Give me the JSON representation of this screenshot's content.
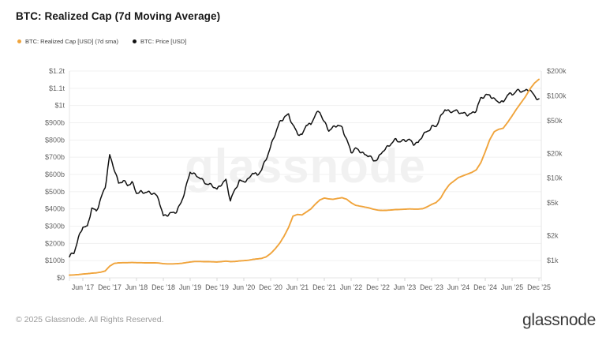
{
  "header": {
    "title": "BTC: Realized Cap (7d Moving Average)"
  },
  "legend": [
    {
      "label": "BTC: Realized Cap [USD] (7d sma)",
      "color": "#f0a43c"
    },
    {
      "label": "BTC: Price [USD]",
      "color": "#111111"
    }
  ],
  "watermark": "glassnode",
  "footer": {
    "copyright": "© 2025 Glassnode. All Rights Reserved.",
    "brand": "glassnode"
  },
  "chart_data": {
    "type": "line",
    "title": "BTC: Realized Cap (7d Moving Average)",
    "x_start": "2017-03",
    "x_end": "2025-12",
    "x_interval": "monthly",
    "x_tick_labels": [
      "Jun ’17",
      "Dec ’17",
      "Jun ’18",
      "Dec ’18",
      "Jun ’19",
      "Dec ’19",
      "Jun ’20",
      "Dec ’20",
      "Jun ’21",
      "Dec ’21",
      "Jun ’22",
      "Dec ’22",
      "Jun ’23",
      "Dec ’23",
      "Jun ’24",
      "Dec ’24",
      "Jun ’25",
      "Dec ’25"
    ],
    "x_tick_first_month_index": 3,
    "x_tick_step_months": 6,
    "left_axis": {
      "scale": "linear",
      "unit": "USD billions",
      "range": [
        0,
        1200
      ],
      "ticks": [
        {
          "label": "$0",
          "value": 0
        },
        {
          "label": "$100b",
          "value": 100
        },
        {
          "label": "$200b",
          "value": 200
        },
        {
          "label": "$300b",
          "value": 300
        },
        {
          "label": "$400b",
          "value": 400
        },
        {
          "label": "$500b",
          "value": 500
        },
        {
          "label": "$600b",
          "value": 600
        },
        {
          "label": "$700b",
          "value": 700
        },
        {
          "label": "$800b",
          "value": 800
        },
        {
          "label": "$900b",
          "value": 900
        },
        {
          "label": "$1t",
          "value": 1000
        },
        {
          "label": "$1.1t",
          "value": 1100
        },
        {
          "label": "$1.2t",
          "value": 1200
        }
      ]
    },
    "right_axis": {
      "scale": "log",
      "unit": "USD",
      "range": [
        1000,
        200000
      ],
      "ticks": [
        {
          "label": "$1k",
          "value": 1000
        },
        {
          "label": "$2k",
          "value": 2000
        },
        {
          "label": "$5k",
          "value": 5000
        },
        {
          "label": "$10k",
          "value": 10000
        },
        {
          "label": "$20k",
          "value": 20000
        },
        {
          "label": "$50k",
          "value": 50000
        },
        {
          "label": "$100k",
          "value": 100000
        },
        {
          "label": "$200k",
          "value": 200000
        }
      ]
    },
    "grid": "horizontal-only",
    "legend_position": "top-left",
    "series": [
      {
        "name": "BTC: Realized Cap [USD] (7d sma)",
        "axis": "left",
        "color": "#f0a43c",
        "unit": "USD billions",
        "values": [
          16,
          17,
          19,
          22,
          24,
          27,
          29,
          33,
          40,
          68,
          84,
          87,
          88,
          88,
          89,
          88,
          88,
          87,
          87,
          87,
          86,
          82,
          81,
          81,
          82,
          84,
          88,
          92,
          95,
          95,
          94,
          94,
          93,
          92,
          94,
          97,
          94,
          95,
          98,
          100,
          102,
          107,
          110,
          113,
          122,
          141,
          168,
          200,
          242,
          292,
          358,
          368,
          365,
          382,
          400,
          428,
          452,
          463,
          458,
          456,
          461,
          465,
          456,
          436,
          421,
          416,
          411,
          406,
          398,
          393,
          391,
          392,
          394,
          396,
          397,
          398,
          400,
          399,
          399,
          401,
          412,
          426,
          437,
          462,
          507,
          542,
          562,
          582,
          592,
          602,
          612,
          627,
          668,
          732,
          802,
          848,
          862,
          868,
          902,
          940,
          980,
          1016,
          1052,
          1096,
          1130,
          1152
        ]
      },
      {
        "name": "BTC: Price [USD]",
        "axis": "right",
        "color": "#111111",
        "unit": "USD",
        "values": [
          1100,
          1250,
          1900,
          2600,
          2500,
          4300,
          4000,
          5700,
          7800,
          18500,
          13000,
          8800,
          9500,
          8100,
          8700,
          6700,
          6900,
          6800,
          6500,
          6450,
          5600,
          3500,
          3600,
          3700,
          3950,
          5200,
          7600,
          11800,
          10800,
          10400,
          9300,
          8400,
          8000,
          7200,
          8700,
          9600,
          5300,
          7100,
          9200,
          9400,
          9600,
          11600,
          10600,
          13000,
          17500,
          24000,
          34000,
          47000,
          56000,
          60000,
          43000,
          34500,
          33000,
          46500,
          44500,
          59000,
          63000,
          48500,
          39000,
          41000,
          43500,
          40500,
          30000,
          21000,
          22500,
          21000,
          19300,
          19400,
          16300,
          16800,
          21000,
          23800,
          27200,
          29200,
          27000,
          29000,
          29800,
          26500,
          26300,
          33000,
          37000,
          43000,
          42800,
          54000,
          68500,
          64500,
          67500,
          63000,
          60000,
          59500,
          62000,
          68000,
          92000,
          99000,
          104000,
          92000,
          85000,
          81000,
          104000,
          106000,
          117000,
          113000,
          112000,
          121000,
          100000,
          92000
        ]
      }
    ]
  }
}
